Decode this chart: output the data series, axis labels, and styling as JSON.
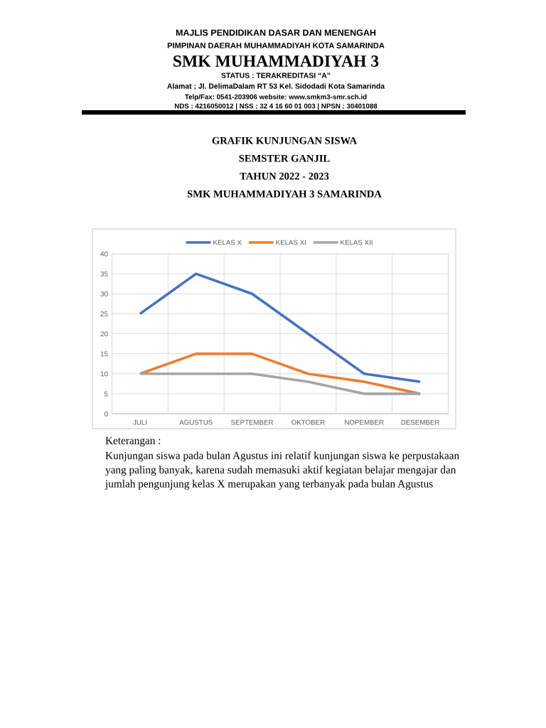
{
  "chart_data": {
    "type": "line",
    "title": "GRAFIK KUNJUNGAN SISWA",
    "subtitle": "SEMSTER GANJIL",
    "annotations": [
      "MAJLIS PENDIDIKAN DASAR DAN MENENGAH",
      "PIMPINAN DAERAH MUHAMMADIYAH KOTA SAMARINDA",
      "SMK MUHAMMADIYAH 3",
      "STATUS : TERAKREDITASI “A”",
      "Alamat ; Jl. DelimaDalam RT 53 Kel. Sidodadi Kota Samarinda",
      "Telp/Fax: 0541-203906 website: www.smkm3-smr.sch.id",
      "NDS : 4216050012 | NSS : 32 4 16 60 01 003 | NPSN : 30401088",
      "TAHUN 2022 - 2023",
      "SMK MUHAMMADIYAH 3 SAMARINDA",
      "Keterangan :",
      "Kunjungan siswa pada bulan Agustus ini relatif kunjungan siswa ke perpustakaan yang paling banyak, karena sudah memasuki aktif kegiatan belajar mengajar dan jumlah pengunjung kelas X merupakan yang terbanyak pada bulan Agustus"
    ],
    "categories": [
      "JULI",
      "AGUSTUS",
      "SEPTEMBER",
      "OKTOBER",
      "NOPEMBER",
      "DESEMBER"
    ],
    "series": [
      {
        "name": "KELAS X",
        "color": "#4472c4",
        "values": [
          25,
          35,
          30,
          20,
          10,
          8
        ]
      },
      {
        "name": "KELAS XI",
        "color": "#ed7d31",
        "values": [
          10,
          15,
          15,
          10,
          8,
          5
        ]
      },
      {
        "name": "KELAS XII",
        "color": "#a5a5a5",
        "values": [
          10,
          10,
          10,
          8,
          5,
          5
        ]
      }
    ],
    "ylim": [
      0,
      40
    ],
    "yticks": [
      0,
      5,
      10,
      15,
      20,
      25,
      30,
      35,
      40
    ],
    "grid": true,
    "legend": "top"
  }
}
